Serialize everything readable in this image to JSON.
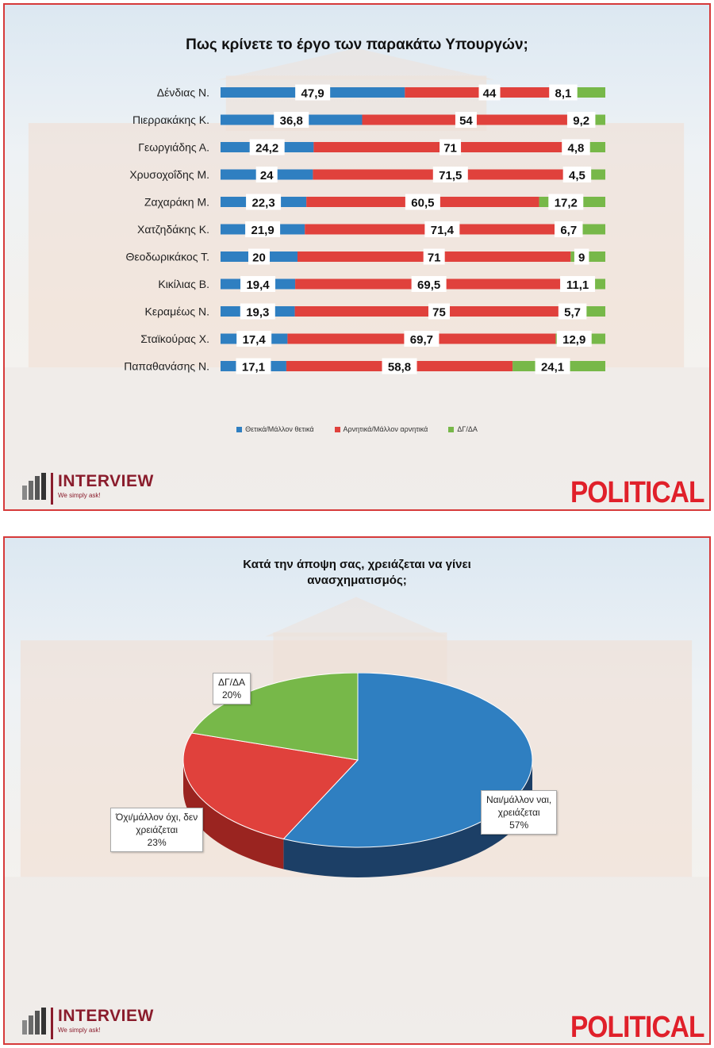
{
  "colors": {
    "positive": "#2f7fc1",
    "negative": "#e0413c",
    "dkna": "#77b849",
    "brand": "#8a1c2c",
    "political": "#e0202a"
  },
  "logo": {
    "name": "INTERVIEW",
    "tagline": "We simply ask!"
  },
  "watermark": "POLITICAL",
  "chart_data": [
    {
      "type": "bar",
      "stacked": true,
      "orientation": "horizontal",
      "title": "Πως κρίνετε το έργο των παρακάτω Υπουργών;",
      "categories": [
        "Δένδιας Ν.",
        "Πιερρακάκης Κ.",
        "Γεωργιάδης Α.",
        "Χρυσοχοΐδης Μ.",
        "Ζαχαράκη Μ.",
        "Χατζηδάκης Κ.",
        "Θεοδωρικάκος Τ.",
        "Κικίλιας Β.",
        "Κεραμέως Ν.",
        "Σταϊκούρας Χ.",
        "Παπαθανάσης Ν."
      ],
      "series": [
        {
          "name": "Θετικά/Μάλλον θετικά",
          "values": [
            47.9,
            36.8,
            24.2,
            24,
            22.3,
            21.9,
            20,
            19.4,
            19.3,
            17.4,
            17.1
          ],
          "labels": [
            "47,9",
            "36,8",
            "24,2",
            "24",
            "22,3",
            "21,9",
            "20",
            "19,4",
            "19,3",
            "17,4",
            "17,1"
          ]
        },
        {
          "name": "Αρνητικά/Μάλλον αρνητικά",
          "values": [
            44,
            54,
            71,
            71.5,
            60.5,
            71.4,
            71,
            69.5,
            75,
            69.7,
            58.8
          ],
          "labels": [
            "44",
            "54",
            "71",
            "71,5",
            "60,5",
            "71,4",
            "71",
            "69,5",
            "75",
            "69,7",
            "58,8"
          ]
        },
        {
          "name": "ΔΓ/ΔΑ",
          "values": [
            8.1,
            9.2,
            4.8,
            4.5,
            17.2,
            6.7,
            9,
            11.1,
            5.7,
            12.9,
            24.1
          ],
          "labels": [
            "8,1",
            "9,2",
            "4,8",
            "4,5",
            "17,2",
            "6,7",
            "9",
            "11,1",
            "5,7",
            "12,9",
            "24,1"
          ]
        }
      ],
      "xlim": [
        0,
        100
      ],
      "legend": "bottom"
    },
    {
      "type": "pie",
      "title_line1": "Κατά την άποψη σας, χρειάζεται να γίνει",
      "title_line2": "ανασχηματισμός;",
      "slices": [
        {
          "label_line1": "Ναι/μάλλον ναι,",
          "label_line2": "χρειάζεται",
          "percent_text": "57%",
          "value": 57
        },
        {
          "label_line1": "Όχι/μάλλον όχι, δεν",
          "label_line2": "χρειάζεται",
          "percent_text": "23%",
          "value": 23
        },
        {
          "label_line1": "ΔΓ/ΔΑ",
          "label_line2": "",
          "percent_text": "20%",
          "value": 20
        }
      ]
    }
  ]
}
